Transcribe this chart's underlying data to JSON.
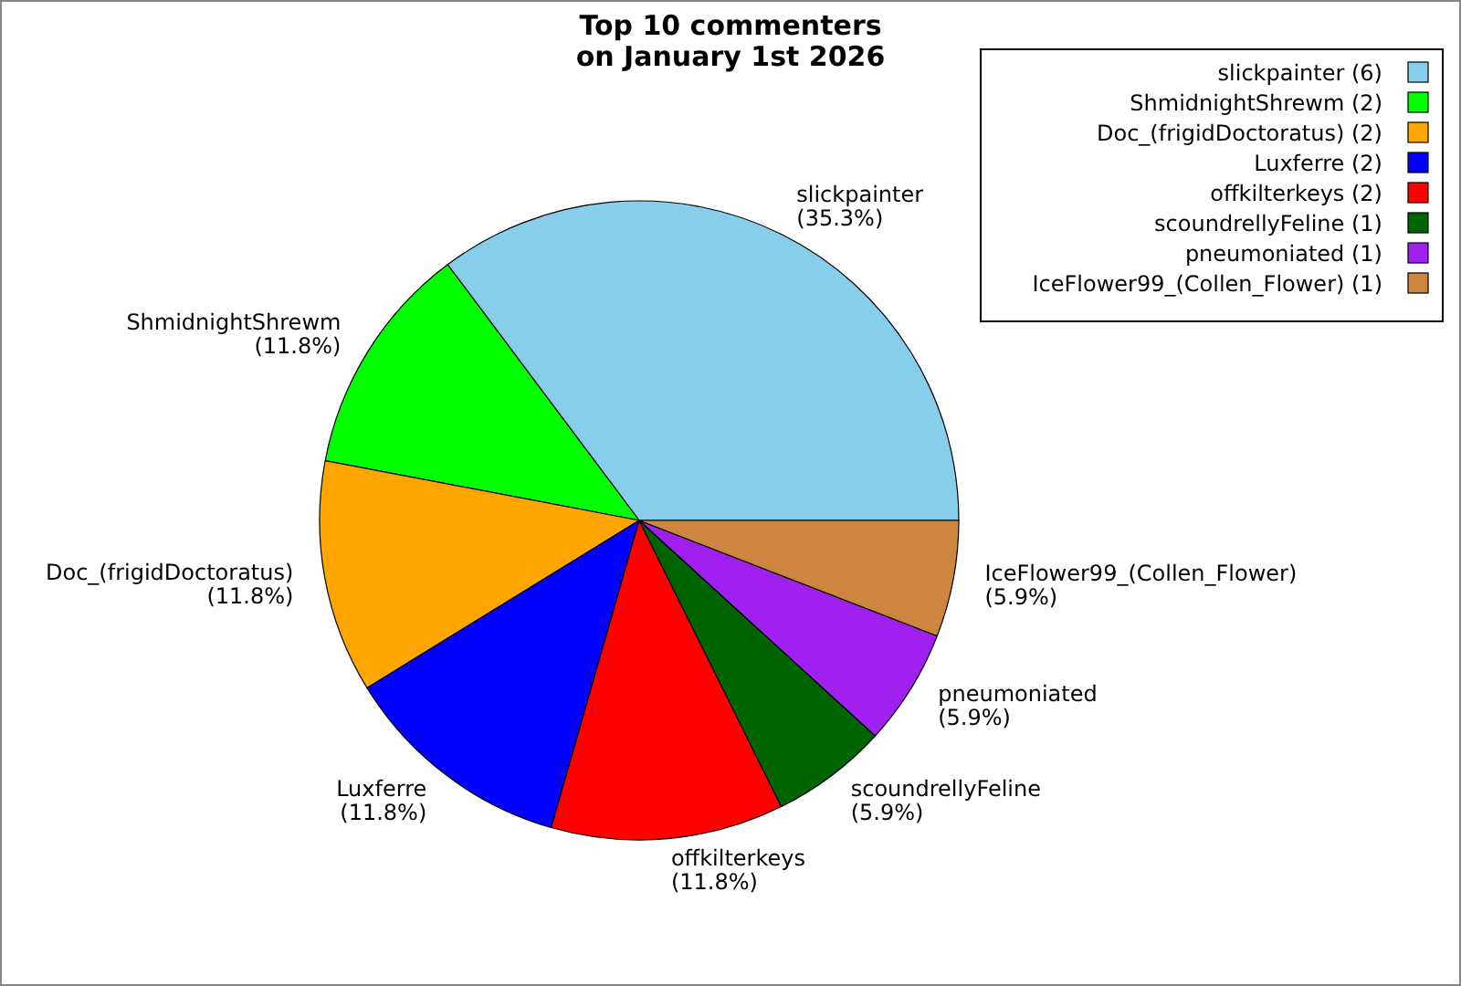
{
  "chart_data": {
    "type": "pie",
    "title": "Top 10 commenters\non January 1st 2026",
    "categories": [
      "slickpainter (6)",
      "ShmidnightShrewm (2)",
      "Doc_(frigidDoctoratus) (2)",
      "Luxferre (2)",
      "offkilterkeys (2)",
      "scoundrellyFeline (1)",
      "pneumoniated (1)",
      "IceFlower99_(Collen_Flower) (1)"
    ],
    "values": [
      35.3,
      11.8,
      11.8,
      11.8,
      11.8,
      5.9,
      5.9,
      5.9
    ],
    "value_labels": [
      "slickpainter\n(35.3%)",
      "ShmidnightShrewm\n(11.8%)",
      "Doc_(frigidDoctoratus)\n(11.8%)",
      "Luxferre\n(11.8%)",
      "offkilterkeys\n(11.8%)",
      "scoundrellyFeline\n(5.9%)",
      "pneumoniated\n(5.9%)",
      "IceFlower99_(Collen_Flower)\n(5.9%)"
    ],
    "colors": [
      "#87ceeb",
      "#00ff00",
      "#ffa500",
      "#0000ff",
      "#ff0000",
      "#006400",
      "#a020f0",
      "#cd853f"
    ],
    "legend": "top right"
  }
}
